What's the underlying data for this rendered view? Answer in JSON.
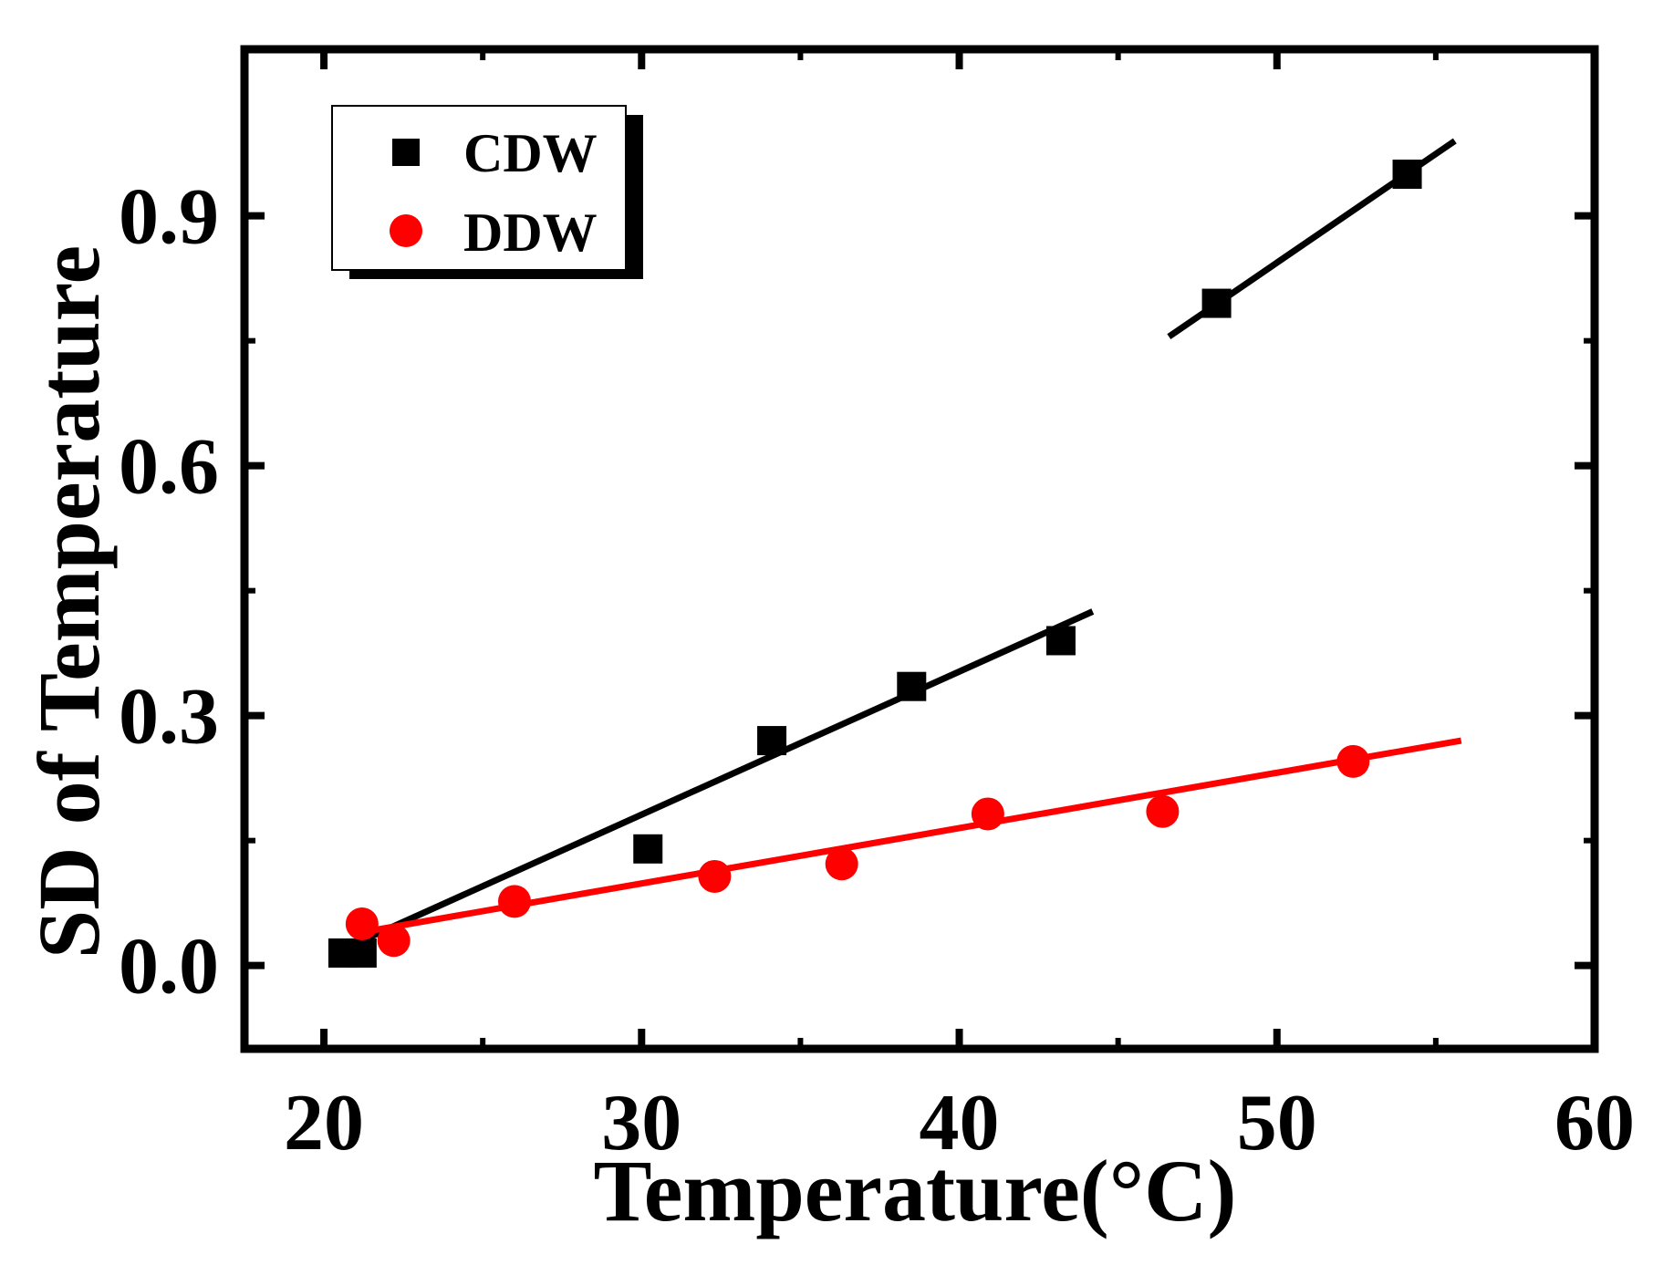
{
  "chart_data": {
    "type": "scatter",
    "xlabel": "Temperature(°C)",
    "ylabel": "SD of Temperature",
    "xlim": [
      17.5,
      60
    ],
    "ylim": [
      -0.1,
      1.1
    ],
    "xticks": [
      20,
      30,
      40,
      50,
      60
    ],
    "yticks": [
      0.0,
      0.3,
      0.6,
      0.9
    ],
    "xtick_labels": [
      "20",
      "30",
      "40",
      "50",
      "60"
    ],
    "ytick_labels": [
      "0.0",
      "0.3",
      "0.6",
      "0.9"
    ],
    "legend_position": "top-left",
    "series": [
      {
        "name": "CDW",
        "marker": "square",
        "color": "#000000",
        "x": [
          20.6,
          21.2,
          30.2,
          34.1,
          38.5,
          43.2,
          48.1,
          54.1
        ],
        "y": [
          0.015,
          0.015,
          0.14,
          0.27,
          0.335,
          0.39,
          0.795,
          0.95
        ]
      },
      {
        "name": "DDW",
        "marker": "circle",
        "color": "#ff0000",
        "x": [
          21.2,
          22.2,
          26.0,
          32.3,
          36.3,
          40.9,
          46.4,
          52.4
        ],
        "y": [
          0.05,
          0.03,
          0.077,
          0.107,
          0.122,
          0.182,
          0.185,
          0.245
        ]
      }
    ],
    "fit_lines": [
      {
        "series": "CDW",
        "segment": "low",
        "color": "#000000",
        "x": [
          21.2,
          44.2
        ],
        "y": [
          0.03,
          0.425
        ]
      },
      {
        "series": "CDW",
        "segment": "high",
        "color": "#000000",
        "x": [
          46.6,
          55.6
        ],
        "y": [
          0.755,
          0.99
        ]
      },
      {
        "series": "DDW",
        "color": "#ff0000",
        "x": [
          21.2,
          55.8
        ],
        "y": [
          0.04,
          0.27
        ]
      }
    ]
  }
}
